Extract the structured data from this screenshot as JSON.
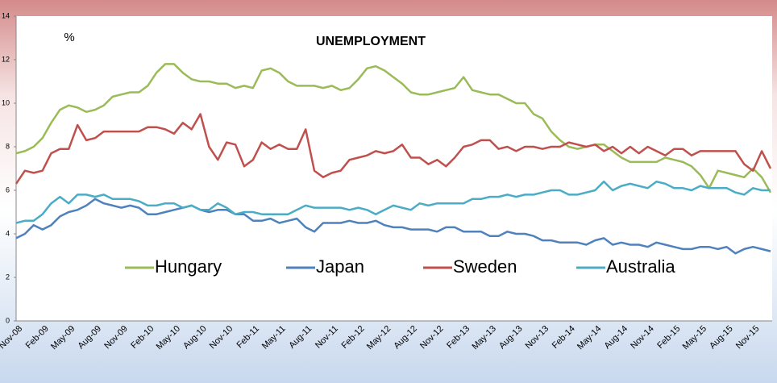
{
  "chart_data": {
    "type": "line",
    "title": "UNEMPLOYMENT",
    "y_label": "%",
    "categories": [
      "Nov-08",
      null,
      null,
      "Feb-09",
      null,
      null,
      "May-09",
      null,
      null,
      "Aug-09",
      null,
      null,
      "Nov-09",
      null,
      null,
      "Feb-10",
      null,
      null,
      "May-10",
      null,
      null,
      "Aug-10",
      null,
      null,
      "Nov-10",
      null,
      null,
      "Feb-11",
      null,
      null,
      "May-11",
      null,
      null,
      "Aug-11",
      null,
      null,
      "Nov-11",
      null,
      null,
      "Feb-12",
      null,
      null,
      "May-12",
      null,
      null,
      "Aug-12",
      null,
      null,
      "Nov-12",
      null,
      null,
      "Feb-13",
      null,
      null,
      "May-13",
      null,
      null,
      "Aug-13",
      null,
      null,
      "Nov-13",
      null,
      null,
      "Feb-14",
      null,
      null,
      "May-14",
      null,
      null,
      "Aug-14",
      null,
      null,
      "Nov-14",
      null,
      null,
      "Feb-15",
      null,
      null,
      "May-15",
      null,
      null,
      "Aug-15",
      null,
      null,
      "Nov-15",
      null,
      null
    ],
    "series": [
      {
        "name": "Hungary",
        "color": "#9bbb59",
        "values": [
          7.7,
          7.8,
          8.0,
          8.4,
          9.1,
          9.7,
          9.9,
          9.8,
          9.6,
          9.7,
          9.9,
          10.3,
          10.4,
          10.5,
          10.5,
          10.8,
          11.4,
          11.8,
          11.8,
          11.4,
          11.1,
          11.0,
          11.0,
          10.9,
          10.9,
          10.7,
          10.8,
          10.7,
          11.5,
          11.6,
          11.4,
          11.0,
          10.8,
          10.8,
          10.8,
          10.7,
          10.8,
          10.6,
          10.7,
          11.1,
          11.6,
          11.7,
          11.5,
          11.2,
          10.9,
          10.5,
          10.4,
          10.4,
          10.5,
          10.6,
          10.7,
          11.2,
          10.6,
          10.5,
          10.4,
          10.4,
          10.2,
          10.0,
          10.0,
          9.5,
          9.3,
          8.7,
          8.3,
          8.0,
          7.9,
          8.0,
          8.1,
          8.1,
          7.8,
          7.5,
          7.3,
          7.3,
          7.3,
          7.3,
          7.5,
          7.4,
          7.3,
          7.1,
          6.7,
          6.1,
          6.9,
          6.8,
          6.7,
          6.6,
          7.0,
          6.6,
          5.9
        ]
      },
      {
        "name": "Japan",
        "color": "#4f81bd",
        "values": [
          3.8,
          4.0,
          4.4,
          4.2,
          4.4,
          4.8,
          5.0,
          5.1,
          5.3,
          5.6,
          5.4,
          5.3,
          5.2,
          5.3,
          5.2,
          4.9,
          4.9,
          5.0,
          5.1,
          5.2,
          5.3,
          5.1,
          5.0,
          5.1,
          5.1,
          4.9,
          4.9,
          4.6,
          4.6,
          4.7,
          4.5,
          4.6,
          4.7,
          4.3,
          4.1,
          4.5,
          4.5,
          4.5,
          4.6,
          4.5,
          4.5,
          4.6,
          4.4,
          4.3,
          4.3,
          4.2,
          4.2,
          4.2,
          4.1,
          4.3,
          4.3,
          4.1,
          4.1,
          4.1,
          3.9,
          3.9,
          4.1,
          4.0,
          4.0,
          3.9,
          3.7,
          3.7,
          3.6,
          3.6,
          3.6,
          3.5,
          3.7,
          3.8,
          3.5,
          3.6,
          3.5,
          3.5,
          3.4,
          3.6,
          3.5,
          3.4,
          3.3,
          3.3,
          3.4,
          3.4,
          3.3,
          3.4,
          3.1,
          3.3,
          3.4,
          3.3,
          3.2
        ]
      },
      {
        "name": "Sweden",
        "color": "#c0504d",
        "values": [
          6.3,
          6.9,
          6.8,
          6.9,
          7.7,
          7.9,
          7.9,
          9.0,
          8.3,
          8.4,
          8.7,
          8.7,
          8.7,
          8.7,
          8.7,
          8.9,
          8.9,
          8.8,
          8.6,
          9.1,
          8.8,
          9.5,
          8.0,
          7.4,
          8.2,
          8.1,
          7.1,
          7.4,
          8.2,
          7.9,
          8.1,
          7.9,
          7.9,
          8.8,
          6.9,
          6.6,
          6.8,
          6.9,
          7.4,
          7.5,
          7.6,
          7.8,
          7.7,
          7.8,
          8.1,
          7.5,
          7.5,
          7.2,
          7.4,
          7.1,
          7.5,
          8.0,
          8.1,
          8.3,
          8.3,
          7.9,
          8.0,
          7.8,
          8.0,
          8.0,
          7.9,
          8.0,
          8.0,
          8.2,
          8.1,
          8.0,
          8.1,
          7.8,
          8.0,
          7.7,
          8.0,
          7.7,
          8.0,
          7.8,
          7.6,
          7.9,
          7.9,
          7.6,
          7.8,
          7.8,
          7.8,
          7.8,
          7.8,
          7.2,
          6.9,
          7.8,
          7.0
        ]
      },
      {
        "name": "Australia",
        "color": "#4bacc6",
        "values": [
          4.5,
          4.6,
          4.6,
          4.9,
          5.4,
          5.7,
          5.4,
          5.8,
          5.8,
          5.7,
          5.8,
          5.6,
          5.6,
          5.6,
          5.5,
          5.3,
          5.3,
          5.4,
          5.4,
          5.2,
          5.3,
          5.1,
          5.1,
          5.4,
          5.2,
          4.9,
          5.0,
          5.0,
          4.9,
          4.9,
          4.9,
          4.9,
          5.1,
          5.3,
          5.2,
          5.2,
          5.2,
          5.2,
          5.1,
          5.2,
          5.1,
          4.9,
          5.1,
          5.3,
          5.2,
          5.1,
          5.4,
          5.3,
          5.4,
          5.4,
          5.4,
          5.4,
          5.6,
          5.6,
          5.7,
          5.7,
          5.8,
          5.7,
          5.8,
          5.8,
          5.9,
          6.0,
          6.0,
          5.8,
          5.8,
          5.9,
          6.0,
          6.4,
          6.0,
          6.2,
          6.3,
          6.2,
          6.1,
          6.4,
          6.3,
          6.1,
          6.1,
          6.0,
          6.2,
          6.1,
          6.1,
          6.1,
          5.9,
          5.8,
          6.1,
          6.0,
          6.0
        ]
      }
    ],
    "ylim": [
      0,
      14
    ],
    "yticks": [
      0,
      2,
      4,
      6,
      8,
      10,
      12,
      14
    ],
    "grid": false,
    "legend": "center"
  }
}
